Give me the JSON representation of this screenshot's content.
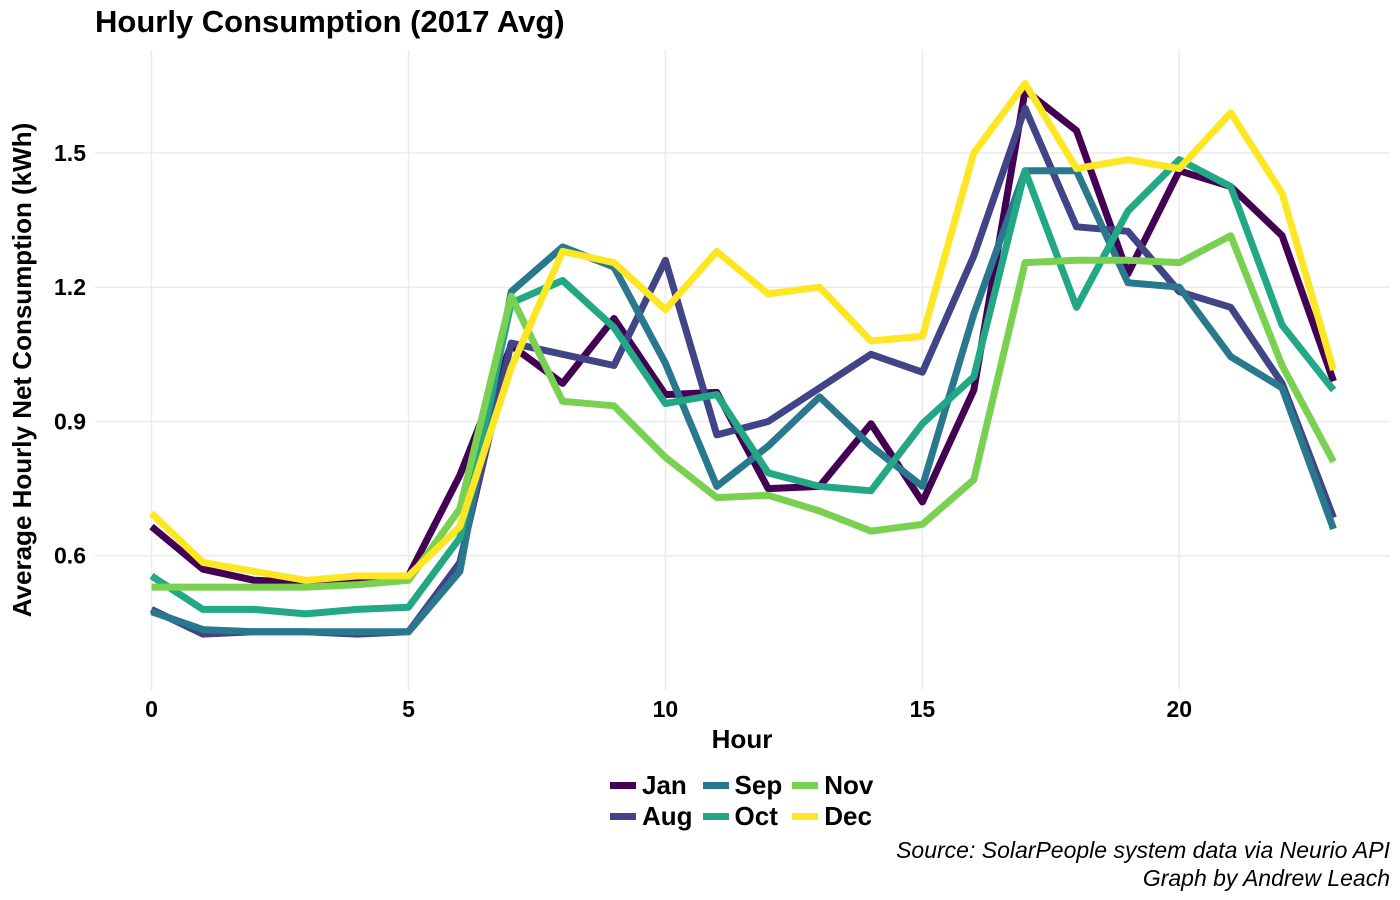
{
  "chart_data": {
    "type": "line",
    "title": "Hourly Consumption (2017 Avg)",
    "xlabel": "Hour",
    "ylabel": "Average Hourly Net Consumption (kWh)",
    "xlim": [
      -1.1,
      24.1
    ],
    "ylim": [
      0.3,
      1.73
    ],
    "x_ticks": [
      0,
      5,
      10,
      15,
      20
    ],
    "y_ticks": [
      0.6,
      0.9,
      1.2,
      1.5
    ],
    "y_tick_labels": [
      "0.6",
      "0.9",
      "1.2",
      "1.5"
    ],
    "grid": true,
    "legend_position": "bottom",
    "x": [
      0,
      1,
      2,
      3,
      4,
      5,
      6,
      7,
      8,
      9,
      10,
      11,
      12,
      13,
      14,
      15,
      16,
      17,
      18,
      19,
      20,
      21,
      22,
      23
    ],
    "series": [
      {
        "name": "Jan",
        "color": "#440154",
        "values": [
          0.665,
          0.57,
          0.545,
          0.54,
          0.545,
          0.555,
          0.78,
          1.07,
          0.985,
          1.13,
          0.96,
          0.965,
          0.75,
          0.755,
          0.895,
          0.72,
          0.97,
          1.64,
          1.55,
          1.23,
          1.46,
          1.425,
          1.315,
          0.99
        ]
      },
      {
        "name": "Aug",
        "color": "#414487",
        "values": [
          0.48,
          0.425,
          0.43,
          0.43,
          0.425,
          0.43,
          0.585,
          1.075,
          1.05,
          1.025,
          1.26,
          0.87,
          0.9,
          0.975,
          1.05,
          1.01,
          1.27,
          1.6,
          1.335,
          1.325,
          1.19,
          1.155,
          0.985,
          0.685
        ]
      },
      {
        "name": "Sep",
        "color": "#2A788E",
        "values": [
          0.475,
          0.435,
          0.43,
          0.43,
          0.43,
          0.43,
          0.565,
          1.19,
          1.29,
          1.245,
          1.03,
          0.755,
          0.845,
          0.955,
          0.845,
          0.755,
          1.14,
          1.46,
          1.46,
          1.21,
          1.2,
          1.045,
          0.975,
          0.66
        ]
      },
      {
        "name": "Oct",
        "color": "#22A884",
        "values": [
          0.555,
          0.48,
          0.48,
          0.47,
          0.48,
          0.485,
          0.64,
          1.165,
          1.215,
          1.11,
          0.94,
          0.96,
          0.785,
          0.755,
          0.745,
          0.895,
          1.0,
          1.46,
          1.155,
          1.37,
          1.485,
          1.425,
          1.115,
          0.97
        ]
      },
      {
        "name": "Nov",
        "color": "#7AD151",
        "values": [
          0.53,
          0.53,
          0.53,
          0.53,
          0.535,
          0.545,
          0.705,
          1.18,
          0.945,
          0.935,
          0.82,
          0.73,
          0.735,
          0.7,
          0.655,
          0.67,
          0.77,
          1.255,
          1.26,
          1.26,
          1.255,
          1.315,
          1.025,
          0.81
        ]
      },
      {
        "name": "Dec",
        "color": "#FDE725",
        "values": [
          0.695,
          0.585,
          0.565,
          0.545,
          0.555,
          0.555,
          0.665,
          1.02,
          1.28,
          1.255,
          1.15,
          1.28,
          1.185,
          1.2,
          1.08,
          1.09,
          1.5,
          1.655,
          1.465,
          1.485,
          1.465,
          1.59,
          1.41,
          1.015
        ]
      }
    ]
  },
  "caption": {
    "line1": "Source: SolarPeople system data via Neurio API",
    "line2": "Graph by Andrew Leach"
  }
}
